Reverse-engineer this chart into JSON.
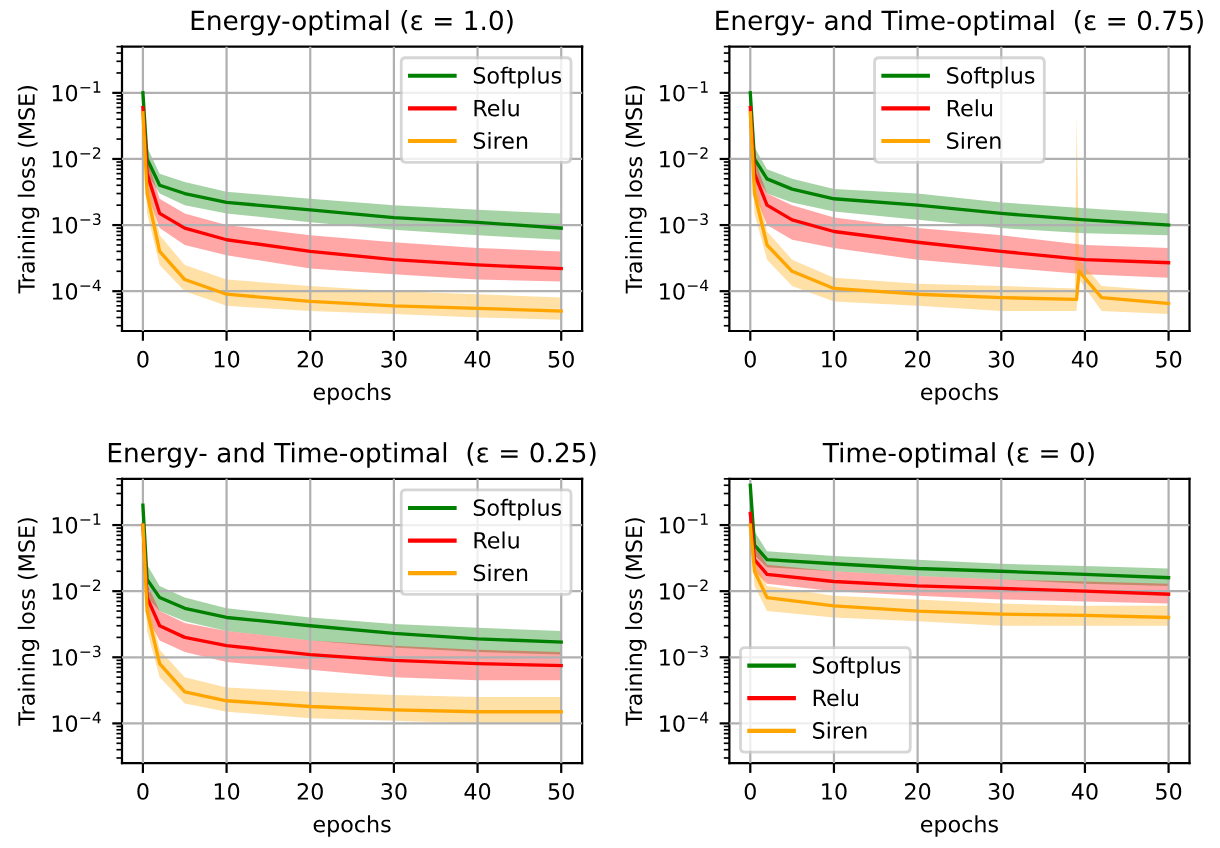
{
  "chart_data": [
    {
      "type": "line",
      "title": "Energy-optimal (ε = 1.0)",
      "xlabel": "epochs",
      "ylabel": "Training loss (MSE)",
      "log": "y",
      "grid": true,
      "legend": "top right",
      "xlim": [
        -2.5,
        52.5
      ],
      "xticks": [
        0,
        10,
        20,
        30,
        40,
        50
      ],
      "ylim": [
        2.5e-05,
        0.5
      ],
      "yticks": [
        {
          "value": 0.0001,
          "label": "10$^{−4}$"
        },
        {
          "value": 0.001,
          "label": "10$^{−3}$"
        },
        {
          "value": 0.01,
          "label": "10$^{−2}$"
        },
        {
          "value": 0.1,
          "label": "10$^{−1}$"
        }
      ],
      "series": [
        {
          "name": "Softplus",
          "color": "#008000",
          "x": [
            0,
            0.5,
            2,
            5,
            10,
            20,
            30,
            40,
            50
          ],
          "values": [
            0.1,
            0.01,
            0.004,
            0.003,
            0.0022,
            0.0017,
            0.0013,
            0.0011,
            0.0009
          ],
          "lower": [
            0.1,
            0.006,
            0.003,
            0.002,
            0.0015,
            0.0011,
            0.00085,
            0.0007,
            0.0006
          ],
          "upper": [
            0.1,
            0.015,
            0.006,
            0.0045,
            0.0032,
            0.0025,
            0.002,
            0.0017,
            0.0015
          ]
        },
        {
          "name": "Relu",
          "color": "#ff0000",
          "x": [
            0,
            0.5,
            2,
            5,
            10,
            20,
            30,
            40,
            50
          ],
          "values": [
            0.06,
            0.006,
            0.0015,
            0.0009,
            0.0006,
            0.0004,
            0.0003,
            0.00025,
            0.00022
          ],
          "lower": [
            0.06,
            0.003,
            0.0009,
            0.0005,
            0.00035,
            0.00022,
            0.00018,
            0.00015,
            0.00014
          ],
          "upper": [
            0.06,
            0.01,
            0.0025,
            0.0015,
            0.001,
            0.0007,
            0.00055,
            0.00045,
            0.0004
          ]
        },
        {
          "name": "Siren",
          "color": "#ffa500",
          "x": [
            0,
            0.5,
            2,
            5,
            10,
            20,
            30,
            40,
            50
          ],
          "values": [
            0.05,
            0.003,
            0.0004,
            0.00015,
            9e-05,
            7e-05,
            6e-05,
            5.5e-05,
            5e-05
          ],
          "lower": [
            0.05,
            0.0015,
            0.00025,
            0.0001,
            6e-05,
            5e-05,
            4.5e-05,
            4e-05,
            3.7e-05
          ],
          "upper": [
            0.05,
            0.006,
            0.0007,
            0.00025,
            0.00015,
            0.00012,
            0.0001,
            9e-05,
            8e-05
          ]
        }
      ]
    },
    {
      "type": "line",
      "title": "Energy- and Time-optimal  (ε = 0.75)",
      "xlabel": "epochs",
      "ylabel": "Training loss (MSE)",
      "log": "y",
      "grid": true,
      "legend": "top",
      "xlim": [
        -2.5,
        52.5
      ],
      "xticks": [
        0,
        10,
        20,
        30,
        40,
        50
      ],
      "ylim": [
        2.5e-05,
        0.5
      ],
      "yticks": [
        {
          "value": 0.0001,
          "label": "10$^{−4}$"
        },
        {
          "value": 0.001,
          "label": "10$^{−3}$"
        },
        {
          "value": 0.01,
          "label": "10$^{−2}$"
        },
        {
          "value": 0.1,
          "label": "10$^{−1}$"
        }
      ],
      "series": [
        {
          "name": "Softplus",
          "color": "#008000",
          "x": [
            0,
            0.5,
            2,
            5,
            10,
            20,
            30,
            40,
            50
          ],
          "values": [
            0.1,
            0.01,
            0.005,
            0.0035,
            0.0025,
            0.002,
            0.0015,
            0.0012,
            0.001
          ],
          "lower": [
            0.1,
            0.006,
            0.003,
            0.0022,
            0.0016,
            0.0012,
            0.0009,
            0.00075,
            0.0007
          ],
          "upper": [
            0.1,
            0.015,
            0.007,
            0.005,
            0.0035,
            0.003,
            0.0022,
            0.0018,
            0.0015
          ]
        },
        {
          "name": "Relu",
          "color": "#ff0000",
          "x": [
            0,
            0.5,
            2,
            5,
            10,
            20,
            30,
            40,
            50
          ],
          "values": [
            0.06,
            0.006,
            0.002,
            0.0012,
            0.0008,
            0.00055,
            0.0004,
            0.0003,
            0.00027
          ],
          "lower": [
            0.06,
            0.003,
            0.001,
            0.0006,
            0.00045,
            0.0003,
            0.00023,
            0.00018,
            0.00016
          ],
          "upper": [
            0.06,
            0.01,
            0.003,
            0.002,
            0.0013,
            0.0009,
            0.0007,
            0.0005,
            0.00045
          ]
        },
        {
          "name": "Siren",
          "color": "#ffa500",
          "x": [
            0,
            0.5,
            2,
            5,
            10,
            20,
            30,
            38.8,
            39,
            39.3,
            42,
            50
          ],
          "values": [
            0.05,
            0.003,
            0.0005,
            0.0002,
            0.00011,
            9e-05,
            8e-05,
            7.5e-05,
            7.5e-05,
            0.0002,
            8e-05,
            6.5e-05
          ],
          "lower": [
            0.05,
            0.0015,
            0.0003,
            0.00012,
            7e-05,
            6e-05,
            5e-05,
            5e-05,
            5e-05,
            0.00015,
            5e-05,
            4.5e-05
          ],
          "upper": [
            0.05,
            0.006,
            0.0008,
            0.0003,
            0.00016,
            0.00013,
            0.00012,
            0.00011,
            0.045,
            0.0003,
            0.00012,
            0.0001
          ]
        }
      ]
    },
    {
      "type": "line",
      "title": "Energy- and Time-optimal  (ε = 0.25)",
      "xlabel": "epochs",
      "ylabel": "Training loss (MSE)",
      "log": "y",
      "grid": true,
      "legend": "top right",
      "xlim": [
        -2.5,
        52.5
      ],
      "xticks": [
        0,
        10,
        20,
        30,
        40,
        50
      ],
      "ylim": [
        2.5e-05,
        0.5
      ],
      "yticks": [
        {
          "value": 0.0001,
          "label": "10$^{−4}$"
        },
        {
          "value": 0.001,
          "label": "10$^{−3}$"
        },
        {
          "value": 0.01,
          "label": "10$^{−2}$"
        },
        {
          "value": 0.1,
          "label": "10$^{−1}$"
        }
      ],
      "series": [
        {
          "name": "Softplus",
          "color": "#008000",
          "x": [
            0,
            0.5,
            2,
            5,
            10,
            20,
            30,
            40,
            50
          ],
          "values": [
            0.2,
            0.015,
            0.008,
            0.0055,
            0.004,
            0.003,
            0.0023,
            0.0019,
            0.0017
          ],
          "lower": [
            0.2,
            0.008,
            0.005,
            0.0035,
            0.0025,
            0.0018,
            0.0014,
            0.0012,
            0.0011
          ],
          "upper": [
            0.2,
            0.025,
            0.012,
            0.008,
            0.0055,
            0.004,
            0.0032,
            0.0028,
            0.0025
          ]
        },
        {
          "name": "Relu",
          "color": "#ff0000",
          "x": [
            0,
            0.5,
            2,
            5,
            10,
            20,
            30,
            40,
            50
          ],
          "values": [
            0.1,
            0.008,
            0.003,
            0.002,
            0.0015,
            0.0011,
            0.0009,
            0.0008,
            0.00075
          ],
          "lower": [
            0.1,
            0.004,
            0.0018,
            0.0012,
            0.00085,
            0.00065,
            0.0005,
            0.00045,
            0.00045
          ],
          "upper": [
            0.1,
            0.013,
            0.005,
            0.0033,
            0.0025,
            0.0018,
            0.0015,
            0.0013,
            0.0012
          ]
        },
        {
          "name": "Siren",
          "color": "#ffa500",
          "x": [
            0,
            0.5,
            2,
            5,
            10,
            20,
            30,
            40,
            50
          ],
          "values": [
            0.1,
            0.005,
            0.0008,
            0.0003,
            0.00022,
            0.00018,
            0.00016,
            0.00015,
            0.00015
          ],
          "lower": [
            0.1,
            0.0025,
            0.0005,
            0.0002,
            0.00015,
            0.00012,
            0.00011,
            0.0001,
            0.0001
          ],
          "upper": [
            0.1,
            0.008,
            0.0013,
            0.0005,
            0.00035,
            0.0003,
            0.00027,
            0.00025,
            0.00025
          ]
        }
      ]
    },
    {
      "type": "line",
      "title": "Time-optimal (ε = 0)",
      "xlabel": "epochs",
      "ylabel": "Training loss (MSE)",
      "log": "y",
      "grid": true,
      "legend": "bottom left",
      "xlim": [
        -2.5,
        52.5
      ],
      "xticks": [
        0,
        10,
        20,
        30,
        40,
        50
      ],
      "ylim": [
        2.5e-05,
        0.5
      ],
      "yticks": [
        {
          "value": 0.0001,
          "label": "10$^{−4}$"
        },
        {
          "value": 0.001,
          "label": "10$^{−3}$"
        },
        {
          "value": 0.01,
          "label": "10$^{−2}$"
        },
        {
          "value": 0.1,
          "label": "10$^{−1}$"
        }
      ],
      "series": [
        {
          "name": "Softplus",
          "color": "#008000",
          "x": [
            0,
            0.5,
            2,
            10,
            20,
            30,
            40,
            50
          ],
          "values": [
            0.4,
            0.05,
            0.03,
            0.026,
            0.022,
            0.02,
            0.018,
            0.016
          ],
          "lower": [
            0.4,
            0.035,
            0.023,
            0.02,
            0.017,
            0.015,
            0.013,
            0.012
          ],
          "upper": [
            0.4,
            0.08,
            0.04,
            0.034,
            0.03,
            0.026,
            0.024,
            0.022
          ]
        },
        {
          "name": "Relu",
          "color": "#ff0000",
          "x": [
            0,
            0.5,
            2,
            10,
            20,
            30,
            40,
            50
          ],
          "values": [
            0.15,
            0.03,
            0.018,
            0.014,
            0.012,
            0.011,
            0.01,
            0.009
          ],
          "lower": [
            0.15,
            0.02,
            0.013,
            0.01,
            0.0085,
            0.0075,
            0.007,
            0.0065
          ],
          "upper": [
            0.15,
            0.05,
            0.025,
            0.02,
            0.017,
            0.015,
            0.014,
            0.013
          ]
        },
        {
          "name": "Siren",
          "color": "#ffa500",
          "x": [
            0,
            0.5,
            2,
            10,
            20,
            30,
            40,
            50
          ],
          "values": [
            0.1,
            0.02,
            0.008,
            0.006,
            0.005,
            0.0045,
            0.0043,
            0.004
          ],
          "lower": [
            0.1,
            0.012,
            0.005,
            0.004,
            0.0035,
            0.003,
            0.003,
            0.003
          ],
          "upper": [
            0.1,
            0.03,
            0.012,
            0.0085,
            0.0075,
            0.0065,
            0.006,
            0.006
          ]
        }
      ]
    }
  ]
}
